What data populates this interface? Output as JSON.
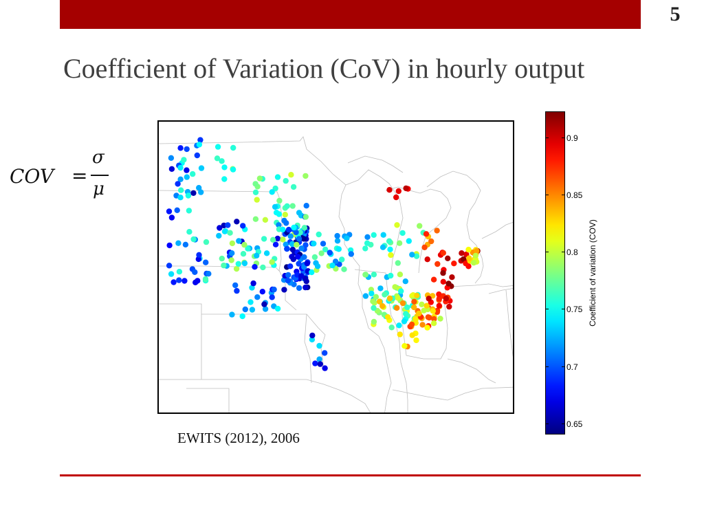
{
  "slide": {
    "number": "5",
    "title": "Coefficient of Variation (CoV) in hourly output",
    "source": "EWITS (2012), 2006"
  },
  "formula": {
    "lhs": "COV",
    "equals": "=",
    "numerator": "σ",
    "denominator": "μ"
  },
  "colorbar": {
    "label": "Coefficient of variation (COV)",
    "min": 0.635,
    "max": 0.92,
    "ticks": [
      "0.65",
      "0.7",
      "0.75",
      "0.8",
      "0.85",
      "0.9"
    ]
  },
  "colors": {
    "accent_bar": "#a50000",
    "accent_line": "#c00000"
  }
}
